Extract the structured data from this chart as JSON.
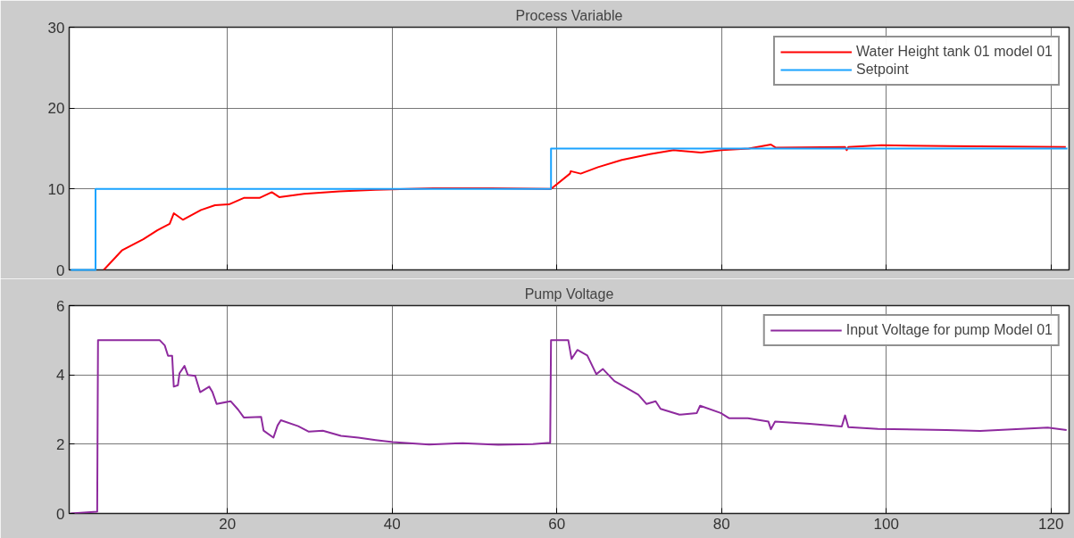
{
  "chart_data": [
    {
      "type": "line",
      "title": "Process Variable",
      "xlim": [
        0.8,
        122.2
      ],
      "xticks": [
        20,
        40,
        60,
        80,
        100,
        120
      ],
      "ylim": [
        0,
        30
      ],
      "yticks": [
        0,
        10,
        20,
        30
      ],
      "grid": true,
      "legend": "top right",
      "tick_labels": "y",
      "series": [
        {
          "name": "Water Height tank 01 model 01",
          "color": "#ff0000",
          "x": [
            5.0,
            7.2,
            9.8,
            11.5,
            13.0,
            13.5,
            14.6,
            16.8,
            18.5,
            20.2,
            22.0,
            23.9,
            25.4,
            26.3,
            29.3,
            33.6,
            38.0,
            45.0,
            52.0,
            59.3,
            61.6,
            61.7,
            62.9,
            65.0,
            67.9,
            71.3,
            74.2,
            77.5,
            80.0,
            83.3,
            86.0,
            86.6,
            95.0,
            95.2,
            95.4,
            99.4,
            107.7,
            121.8
          ],
          "values": [
            0,
            2.4,
            3.8,
            4.9,
            5.7,
            7.0,
            6.2,
            7.4,
            8.0,
            8.1,
            8.9,
            8.9,
            9.6,
            9.0,
            9.4,
            9.7,
            9.9,
            10.1,
            10.1,
            10.0,
            11.9,
            12.2,
            11.9,
            12.7,
            13.6,
            14.3,
            14.8,
            14.5,
            14.8,
            15.0,
            15.5,
            15.1,
            15.2,
            14.8,
            15.2,
            15.4,
            15.3,
            15.2
          ]
        },
        {
          "name": "Setpoint",
          "type": "step",
          "color": "#1aa3ff",
          "x": [
            1,
            4,
            59.3,
            122
          ],
          "values": [
            0,
            10,
            15,
            15
          ]
        }
      ]
    },
    {
      "type": "line",
      "title": "Pump Voltage",
      "xlim": [
        0.8,
        122.2
      ],
      "xticks": [
        20,
        40,
        60,
        80,
        100,
        120
      ],
      "ylim": [
        0,
        6
      ],
      "yticks": [
        0,
        2,
        4,
        6
      ],
      "grid": true,
      "legend": "top right",
      "series": [
        {
          "name": "Input Voltage for pump Model 01",
          "color": "#8e2a9e",
          "x": [
            1.0,
            4.2,
            4.3,
            11.8,
            12.4,
            12.8,
            13.3,
            13.5,
            14.0,
            14.2,
            14.8,
            15.2,
            16.1,
            16.7,
            17.8,
            18.2,
            18.7,
            20.4,
            21.3,
            22.0,
            24.1,
            24.4,
            25.6,
            26.1,
            26.5,
            28.6,
            29.9,
            31.6,
            33.8,
            35.9,
            38.0,
            40.1,
            44.5,
            48.6,
            52.9,
            57.1,
            59.2,
            59.3,
            61.4,
            61.8,
            62.5,
            63.7,
            64.8,
            65.6,
            67.0,
            68.3,
            69.9,
            70.9,
            72.0,
            72.6,
            74.9,
            77.0,
            77.4,
            79.9,
            80.9,
            83.2,
            85.7,
            86.0,
            86.5,
            90.7,
            94.6,
            95.0,
            95.4,
            99.0,
            107.3,
            111.4,
            119.6,
            121.9
          ],
          "values": [
            0,
            0.05,
            5.0,
            5.0,
            4.85,
            4.55,
            4.55,
            3.66,
            3.7,
            4.05,
            4.26,
            4.0,
            3.97,
            3.5,
            3.66,
            3.5,
            3.16,
            3.24,
            3.0,
            2.77,
            2.79,
            2.39,
            2.19,
            2.54,
            2.69,
            2.52,
            2.36,
            2.39,
            2.24,
            2.19,
            2.12,
            2.06,
            1.99,
            2.03,
            1.98,
            2.0,
            2.04,
            5.0,
            5.0,
            4.46,
            4.72,
            4.56,
            4.02,
            4.17,
            3.82,
            3.65,
            3.43,
            3.16,
            3.24,
            3.02,
            2.85,
            2.9,
            3.11,
            2.9,
            2.75,
            2.75,
            2.65,
            2.43,
            2.65,
            2.59,
            2.51,
            2.83,
            2.49,
            2.44,
            2.41,
            2.38,
            2.48,
            2.41
          ]
        }
      ]
    }
  ]
}
